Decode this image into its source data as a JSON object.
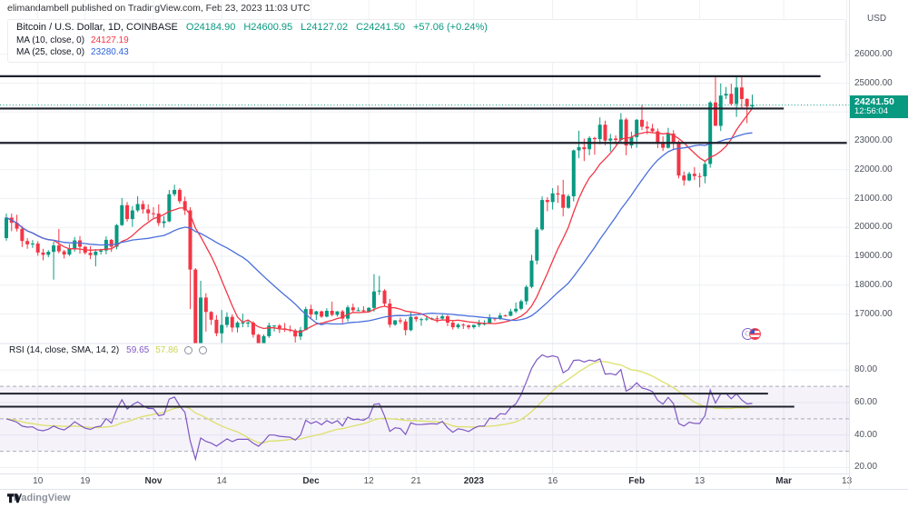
{
  "header": {
    "published_line": "elimandambell published on TradingView.com, Feb 23, 2023 11:03 UTC"
  },
  "legend": {
    "symbol": "Bitcoin / U.S. Dollar, 1D, COINBASE",
    "o": "O24184.90",
    "h": "H24600.95",
    "l": "L24127.02",
    "c": "C24241.50",
    "change": "+57.06 (+0.24%)",
    "ma10_label": "MA (10, close, 0)",
    "ma10_value": "24127.19",
    "ma25_label": "MA (25, close, 0)",
    "ma25_value": "23280.43"
  },
  "rsi_legend": {
    "label": "RSI (14, close, SMA, 14, 2)",
    "rsi_value": "59.65",
    "sma_value": "57.86"
  },
  "price_axis": {
    "currency": "USD",
    "ticks": [
      26000,
      25000,
      23000,
      22000,
      21000,
      20000,
      19000,
      18000,
      17000
    ],
    "last_price_label": "24241.50",
    "countdown": "12:56:04"
  },
  "rsi_axis": {
    "ticks": [
      80,
      60,
      40,
      20
    ]
  },
  "time_axis": {
    "ticks": [
      {
        "label": "10",
        "day": 6,
        "bold": false
      },
      {
        "label": "19",
        "day": 15,
        "bold": false
      },
      {
        "label": "Nov",
        "day": 28,
        "bold": true
      },
      {
        "label": "14",
        "day": 41,
        "bold": false
      },
      {
        "label": "Dec",
        "day": 58,
        "bold": true
      },
      {
        "label": "12",
        "day": 69,
        "bold": false
      },
      {
        "label": "21",
        "day": 78,
        "bold": false
      },
      {
        "label": "2023",
        "day": 89,
        "bold": true
      },
      {
        "label": "16",
        "day": 104,
        "bold": false
      },
      {
        "label": "Feb",
        "day": 120,
        "bold": true
      },
      {
        "label": "13",
        "day": 132,
        "bold": false
      },
      {
        "label": "Mar",
        "day": 148,
        "bold": true
      },
      {
        "label": "13",
        "day": 160,
        "bold": false
      }
    ]
  },
  "branding": {
    "logo_text": "TradingView"
  },
  "colors": {
    "up": "#089981",
    "down": "#f23645",
    "ma10": "#f23645",
    "ma25": "#4a6fdc",
    "rsi": "#7e57c2",
    "rsi_sma": "#dce06a",
    "trendline": "#1e222d",
    "badge_bg": "#089981",
    "band_fill": "rgba(126,87,194,0.08)",
    "band_edge": "#aaadb8",
    "grid": "#eef0f4",
    "separator": "#e0e3eb"
  },
  "chart_data": {
    "type": "candlestick",
    "title": "Bitcoin / U.S. Dollar",
    "interval": "1D",
    "exchange": "COINBASE",
    "start_date": "2022-10-04",
    "last_price": 24241.5,
    "price_axis_range_visible": [
      15900,
      26400
    ],
    "ohlc": [
      [
        19630,
        20480,
        19540,
        20340
      ],
      [
        20340,
        20480,
        19870,
        20160
      ],
      [
        20160,
        20440,
        19860,
        19955
      ],
      [
        19955,
        20050,
        19320,
        19530
      ],
      [
        19530,
        19630,
        19260,
        19415
      ],
      [
        19415,
        19560,
        19290,
        19440
      ],
      [
        19440,
        19520,
        19020,
        19130
      ],
      [
        19130,
        19260,
        18860,
        19050
      ],
      [
        19050,
        19210,
        18970,
        19155
      ],
      [
        19155,
        19510,
        18190,
        19375
      ],
      [
        19375,
        19950,
        19100,
        19170
      ],
      [
        19170,
        19220,
        18920,
        19060
      ],
      [
        19060,
        19420,
        19010,
        19260
      ],
      [
        19260,
        19670,
        19160,
        19550
      ],
      [
        19550,
        19700,
        19090,
        19330
      ],
      [
        19330,
        19360,
        19060,
        19120
      ],
      [
        19120,
        19350,
        18900,
        19040
      ],
      [
        19040,
        19250,
        18650,
        19160
      ],
      [
        19160,
        19260,
        19060,
        19200
      ],
      [
        19200,
        19690,
        19070,
        19570
      ],
      [
        19570,
        19600,
        19150,
        19330
      ],
      [
        19330,
        20120,
        19240,
        20080
      ],
      [
        20080,
        21020,
        20050,
        20770
      ],
      [
        20770,
        20880,
        20200,
        20290
      ],
      [
        20290,
        20740,
        20020,
        20590
      ],
      [
        20590,
        21080,
        20530,
        20810
      ],
      [
        20810,
        20930,
        20480,
        20625
      ],
      [
        20625,
        20800,
        20230,
        20490
      ],
      [
        20490,
        20700,
        20330,
        20480
      ],
      [
        20480,
        20800,
        20050,
        20150
      ],
      [
        20150,
        20390,
        19990,
        20210
      ],
      [
        20210,
        21300,
        20180,
        21150
      ],
      [
        21150,
        21480,
        21080,
        21300
      ],
      [
        21300,
        21360,
        20830,
        20910
      ],
      [
        20910,
        21070,
        20430,
        20590
      ],
      [
        20590,
        20700,
        17170,
        18540
      ],
      [
        18540,
        18590,
        15880,
        15900
      ],
      [
        15900,
        18150,
        15850,
        17570
      ],
      [
        17570,
        17720,
        16390,
        17070
      ],
      [
        17070,
        17100,
        16620,
        16800
      ],
      [
        16800,
        16960,
        16230,
        16330
      ],
      [
        16330,
        17140,
        15850,
        16620
      ],
      [
        16620,
        17060,
        16530,
        16900
      ],
      [
        16900,
        16990,
        16370,
        16530
      ],
      [
        16530,
        16750,
        16360,
        16700
      ],
      [
        16700,
        17010,
        16540,
        16700
      ],
      [
        16700,
        16790,
        16540,
        16700
      ],
      [
        16700,
        16750,
        16180,
        16280
      ],
      [
        16280,
        16310,
        15850,
        15960
      ],
      [
        15960,
        16290,
        15850,
        16230
      ],
      [
        16230,
        16700,
        16170,
        16600
      ],
      [
        16600,
        16610,
        16390,
        16600
      ],
      [
        16600,
        16650,
        16340,
        16500
      ],
      [
        16500,
        16690,
        16380,
        16460
      ],
      [
        16460,
        16600,
        16370,
        16430
      ],
      [
        16430,
        16490,
        16010,
        16220
      ],
      [
        16220,
        16550,
        16100,
        16440
      ],
      [
        16440,
        17250,
        16430,
        17170
      ],
      [
        17170,
        17320,
        16860,
        16980
      ],
      [
        16980,
        17110,
        16790,
        17090
      ],
      [
        17090,
        17120,
        16860,
        16910
      ],
      [
        16910,
        17200,
        16880,
        17110
      ],
      [
        17110,
        17430,
        16920,
        16970
      ],
      [
        16970,
        17100,
        16910,
        17090
      ],
      [
        17090,
        17140,
        16680,
        16840
      ],
      [
        16840,
        17300,
        16740,
        17230
      ],
      [
        17230,
        17360,
        17060,
        17130
      ],
      [
        17130,
        17230,
        17100,
        17130
      ],
      [
        17130,
        17270,
        17070,
        17090
      ],
      [
        17090,
        17240,
        17050,
        17210
      ],
      [
        17210,
        18380,
        17080,
        17780
      ],
      [
        17780,
        18320,
        17660,
        17810
      ],
      [
        17810,
        17860,
        17280,
        17360
      ],
      [
        17360,
        17520,
        16530,
        16630
      ],
      [
        16630,
        16790,
        16590,
        16780
      ],
      [
        16780,
        16870,
        16660,
        16740
      ],
      [
        16740,
        16820,
        16260,
        16440
      ],
      [
        16440,
        17060,
        16400,
        16900
      ],
      [
        16900,
        16920,
        16730,
        16820
      ],
      [
        16820,
        16870,
        16590,
        16820
      ],
      [
        16820,
        16950,
        16760,
        16840
      ],
      [
        16840,
        16880,
        16790,
        16850
      ],
      [
        16850,
        16940,
        16700,
        16840
      ],
      [
        16840,
        16990,
        16810,
        16920
      ],
      [
        16920,
        16970,
        16580,
        16700
      ],
      [
        16700,
        16790,
        16460,
        16540
      ],
      [
        16540,
        16680,
        16490,
        16630
      ],
      [
        16630,
        16680,
        16480,
        16600
      ],
      [
        16600,
        16640,
        16470,
        16540
      ],
      [
        16540,
        16630,
        16490,
        16620
      ],
      [
        16620,
        16800,
        16540,
        16670
      ],
      [
        16670,
        16780,
        16600,
        16670
      ],
      [
        16670,
        16990,
        16650,
        16850
      ],
      [
        16850,
        16880,
        16750,
        16830
      ],
      [
        16830,
        17040,
        16790,
        16950
      ],
      [
        16950,
        16980,
        16910,
        16940
      ],
      [
        16940,
        17180,
        16920,
        17090
      ],
      [
        17090,
        17400,
        17030,
        17180
      ],
      [
        17180,
        17500,
        17130,
        17440
      ],
      [
        17440,
        18000,
        17320,
        17940
      ],
      [
        17940,
        19050,
        17890,
        18850
      ],
      [
        18850,
        20010,
        18720,
        19930
      ],
      [
        19930,
        21075,
        19890,
        20950
      ],
      [
        20950,
        21050,
        20560,
        20880
      ],
      [
        20880,
        21360,
        20620,
        21180
      ],
      [
        21180,
        21450,
        20850,
        21140
      ],
      [
        21140,
        21650,
        20380,
        20680
      ],
      [
        20680,
        21150,
        20650,
        21080
      ],
      [
        21080,
        22700,
        20900,
        22670
      ],
      [
        22670,
        23350,
        22400,
        22780
      ],
      [
        22780,
        23080,
        22300,
        22710
      ],
      [
        22710,
        23160,
        22500,
        23100
      ],
      [
        23100,
        23140,
        22520,
        23060
      ],
      [
        23060,
        23810,
        22880,
        23560
      ],
      [
        23560,
        23700,
        22850,
        23010
      ],
      [
        23010,
        23240,
        22630,
        23080
      ],
      [
        23080,
        23190,
        22880,
        23030
      ],
      [
        23030,
        23960,
        22970,
        23740
      ],
      [
        23740,
        23800,
        22500,
        22840
      ],
      [
        22840,
        23320,
        22740,
        23130
      ],
      [
        23130,
        23760,
        22760,
        23730
      ],
      [
        23730,
        24250,
        23370,
        23490
      ],
      [
        23490,
        23680,
        23230,
        23430
      ],
      [
        23430,
        23590,
        23270,
        23330
      ],
      [
        23330,
        23430,
        22750,
        22940
      ],
      [
        22940,
        23160,
        22650,
        22760
      ],
      [
        22760,
        23450,
        22730,
        23250
      ],
      [
        23250,
        23370,
        22680,
        22960
      ],
      [
        22960,
        23020,
        21700,
        21800
      ],
      [
        21800,
        21940,
        21450,
        21630
      ],
      [
        21630,
        21930,
        21600,
        21860
      ],
      [
        21860,
        22090,
        21640,
        21780
      ],
      [
        21780,
        21890,
        21390,
        21770
      ],
      [
        21770,
        22320,
        21530,
        22200
      ],
      [
        22200,
        24380,
        22070,
        24330
      ],
      [
        24330,
        25250,
        23550,
        23520
      ],
      [
        23520,
        24990,
        23340,
        24570
      ],
      [
        24570,
        24870,
        24450,
        24630
      ],
      [
        24630,
        24980,
        24220,
        24280
      ],
      [
        24280,
        25270,
        23830,
        24850
      ],
      [
        24850,
        25250,
        24150,
        24450
      ],
      [
        24450,
        24480,
        23610,
        24190
      ],
      [
        24190,
        24601,
        24127,
        24241.5
      ]
    ],
    "overlays": [
      {
        "name": "MA 10",
        "type": "sma",
        "length": 10,
        "source": "close",
        "value": 24127.19
      },
      {
        "name": "MA 25",
        "type": "sma",
        "length": 25,
        "source": "close",
        "value": 23280.43
      }
    ],
    "price_trendlines": [
      {
        "price": 25240,
        "to_day": 155
      },
      {
        "price": 24120,
        "to_day": 148
      },
      {
        "price": 22930,
        "to_day": 160
      }
    ],
    "indicator": {
      "name": "RSI",
      "length": 14,
      "smoothing": "SMA 14",
      "last_value": 59.65,
      "smoothing_last_value": 57.86,
      "levels": [
        70,
        50,
        30
      ],
      "band": [
        30,
        70
      ],
      "rsi_trendlines": [
        {
          "value": 65.5,
          "to_day": 145
        },
        {
          "value": 57.5,
          "to_day": 150
        }
      ]
    }
  }
}
